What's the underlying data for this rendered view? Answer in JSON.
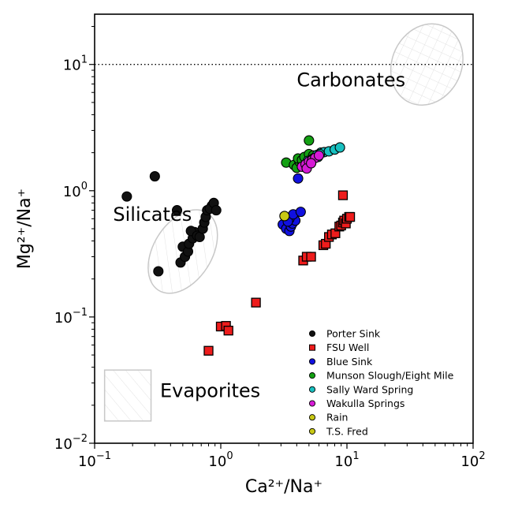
{
  "chart_data": {
    "type": "scatter",
    "xscale": "log",
    "yscale": "log",
    "xlim": [
      0.1,
      100
    ],
    "ylim": [
      0.01,
      25
    ],
    "xlabel": "Ca²⁺/Na⁺",
    "ylabel": "Mg²⁺/Na⁺",
    "x_ticks": [
      {
        "value": 0.1,
        "base": "10",
        "exp": "−1"
      },
      {
        "value": 1,
        "base": "10",
        "exp": "0"
      },
      {
        "value": 10,
        "base": "10",
        "exp": "1"
      },
      {
        "value": 100,
        "base": "10",
        "exp": "2"
      }
    ],
    "y_ticks": [
      {
        "value": 0.01,
        "base": "10",
        "exp": "−2"
      },
      {
        "value": 0.1,
        "base": "10",
        "exp": "−1"
      },
      {
        "value": 1,
        "base": "10",
        "exp": "0"
      },
      {
        "value": 10,
        "base": "10",
        "exp": "1"
      }
    ],
    "reference_line": {
      "y": 10,
      "style": "dotted"
    },
    "regions": [
      {
        "label": "Carbonates",
        "shape": "ellipse",
        "center": [
          43,
          10
        ],
        "label_at": [
          4.0,
          7.5
        ]
      },
      {
        "label": "Silicates",
        "shape": "ellipse",
        "center": [
          0.5,
          0.33
        ],
        "label_at": [
          0.14,
          0.65
        ]
      },
      {
        "label": "Evaporites",
        "shape": "rect",
        "x_range": [
          0.12,
          0.28
        ],
        "y_range": [
          0.015,
          0.038
        ],
        "label_at": [
          0.33,
          0.026
        ]
      }
    ],
    "series": [
      {
        "name": "Porter Sink",
        "marker": "circle",
        "color": "#111111",
        "points": [
          [
            0.18,
            0.9
          ],
          [
            0.3,
            1.3
          ],
          [
            0.45,
            0.7
          ],
          [
            0.32,
            0.23
          ],
          [
            0.48,
            0.27
          ],
          [
            0.52,
            0.3
          ],
          [
            0.5,
            0.36
          ],
          [
            0.55,
            0.33
          ],
          [
            0.56,
            0.38
          ],
          [
            0.6,
            0.42
          ],
          [
            0.62,
            0.47
          ],
          [
            0.58,
            0.48
          ],
          [
            0.65,
            0.44
          ],
          [
            0.68,
            0.43
          ],
          [
            0.72,
            0.5
          ],
          [
            0.74,
            0.56
          ],
          [
            0.76,
            0.62
          ],
          [
            0.78,
            0.7
          ],
          [
            0.85,
            0.76
          ],
          [
            0.82,
            0.72
          ],
          [
            0.88,
            0.8
          ],
          [
            0.92,
            0.7
          ]
        ]
      },
      {
        "name": "FSU Well",
        "marker": "square",
        "color": "#ee1c1c",
        "points": [
          [
            0.8,
            0.054
          ],
          [
            1.0,
            0.084
          ],
          [
            1.1,
            0.085
          ],
          [
            1.15,
            0.078
          ],
          [
            1.9,
            0.13
          ],
          [
            4.5,
            0.28
          ],
          [
            4.8,
            0.3
          ],
          [
            5.2,
            0.3
          ],
          [
            6.5,
            0.37
          ],
          [
            6.8,
            0.38
          ],
          [
            7.2,
            0.43
          ],
          [
            7.6,
            0.45
          ],
          [
            8.1,
            0.46
          ],
          [
            8.7,
            0.52
          ],
          [
            9.0,
            0.53
          ],
          [
            9.3,
            0.56
          ],
          [
            9.5,
            0.58
          ],
          [
            9.8,
            0.55
          ],
          [
            10.0,
            0.6
          ],
          [
            10.4,
            0.62
          ],
          [
            10.6,
            0.62
          ],
          [
            9.3,
            0.92
          ]
        ]
      },
      {
        "name": "Blue Sink",
        "marker": "circle",
        "color": "#1010e0",
        "points": [
          [
            3.1,
            0.54
          ],
          [
            3.3,
            0.5
          ],
          [
            3.5,
            0.48
          ],
          [
            3.6,
            0.52
          ],
          [
            3.7,
            0.55
          ],
          [
            3.8,
            0.6
          ],
          [
            3.9,
            0.58
          ],
          [
            3.5,
            0.6
          ],
          [
            3.4,
            0.57
          ],
          [
            3.75,
            0.65
          ],
          [
            4.3,
            0.68
          ],
          [
            4.1,
            1.25
          ]
        ]
      },
      {
        "name": "Munson Slough/Eight Mile",
        "marker": "circle",
        "color": "#13a013",
        "points": [
          [
            3.3,
            1.67
          ],
          [
            3.8,
            1.6
          ],
          [
            4.0,
            1.52
          ],
          [
            4.2,
            1.7
          ],
          [
            4.1,
            1.8
          ],
          [
            4.4,
            1.75
          ],
          [
            4.6,
            1.85
          ],
          [
            5.0,
            1.95
          ],
          [
            5.0,
            2.5
          ],
          [
            5.4,
            1.9
          ]
        ]
      },
      {
        "name": "Sally Ward Spring",
        "marker": "circle",
        "color": "#18c0c0",
        "points": [
          [
            4.9,
            1.72
          ],
          [
            5.4,
            1.8
          ],
          [
            5.8,
            1.92
          ],
          [
            6.2,
            2.0
          ],
          [
            6.6,
            2.02
          ],
          [
            7.2,
            2.05
          ],
          [
            8.0,
            2.12
          ],
          [
            8.8,
            2.2
          ],
          [
            5.9,
            1.85
          ],
          [
            6.1,
            1.95
          ]
        ]
      },
      {
        "name": "Wakulla Springs",
        "marker": "circle",
        "color": "#d61ad6",
        "points": [
          [
            4.4,
            1.55
          ],
          [
            4.7,
            1.62
          ],
          [
            5.0,
            1.7
          ],
          [
            5.3,
            1.75
          ],
          [
            5.6,
            1.82
          ],
          [
            6.0,
            1.9
          ],
          [
            4.8,
            1.5
          ],
          [
            5.2,
            1.65
          ]
        ]
      },
      {
        "name": "Rain",
        "marker": "circle",
        "color": "#c8c814",
        "points": [
          [
            3.2,
            0.63
          ]
        ]
      },
      {
        "name": "T.S. Fred",
        "marker": "circle",
        "color": "#c8c814",
        "points": []
      }
    ],
    "legend_position": "lower-right",
    "grid": false
  }
}
